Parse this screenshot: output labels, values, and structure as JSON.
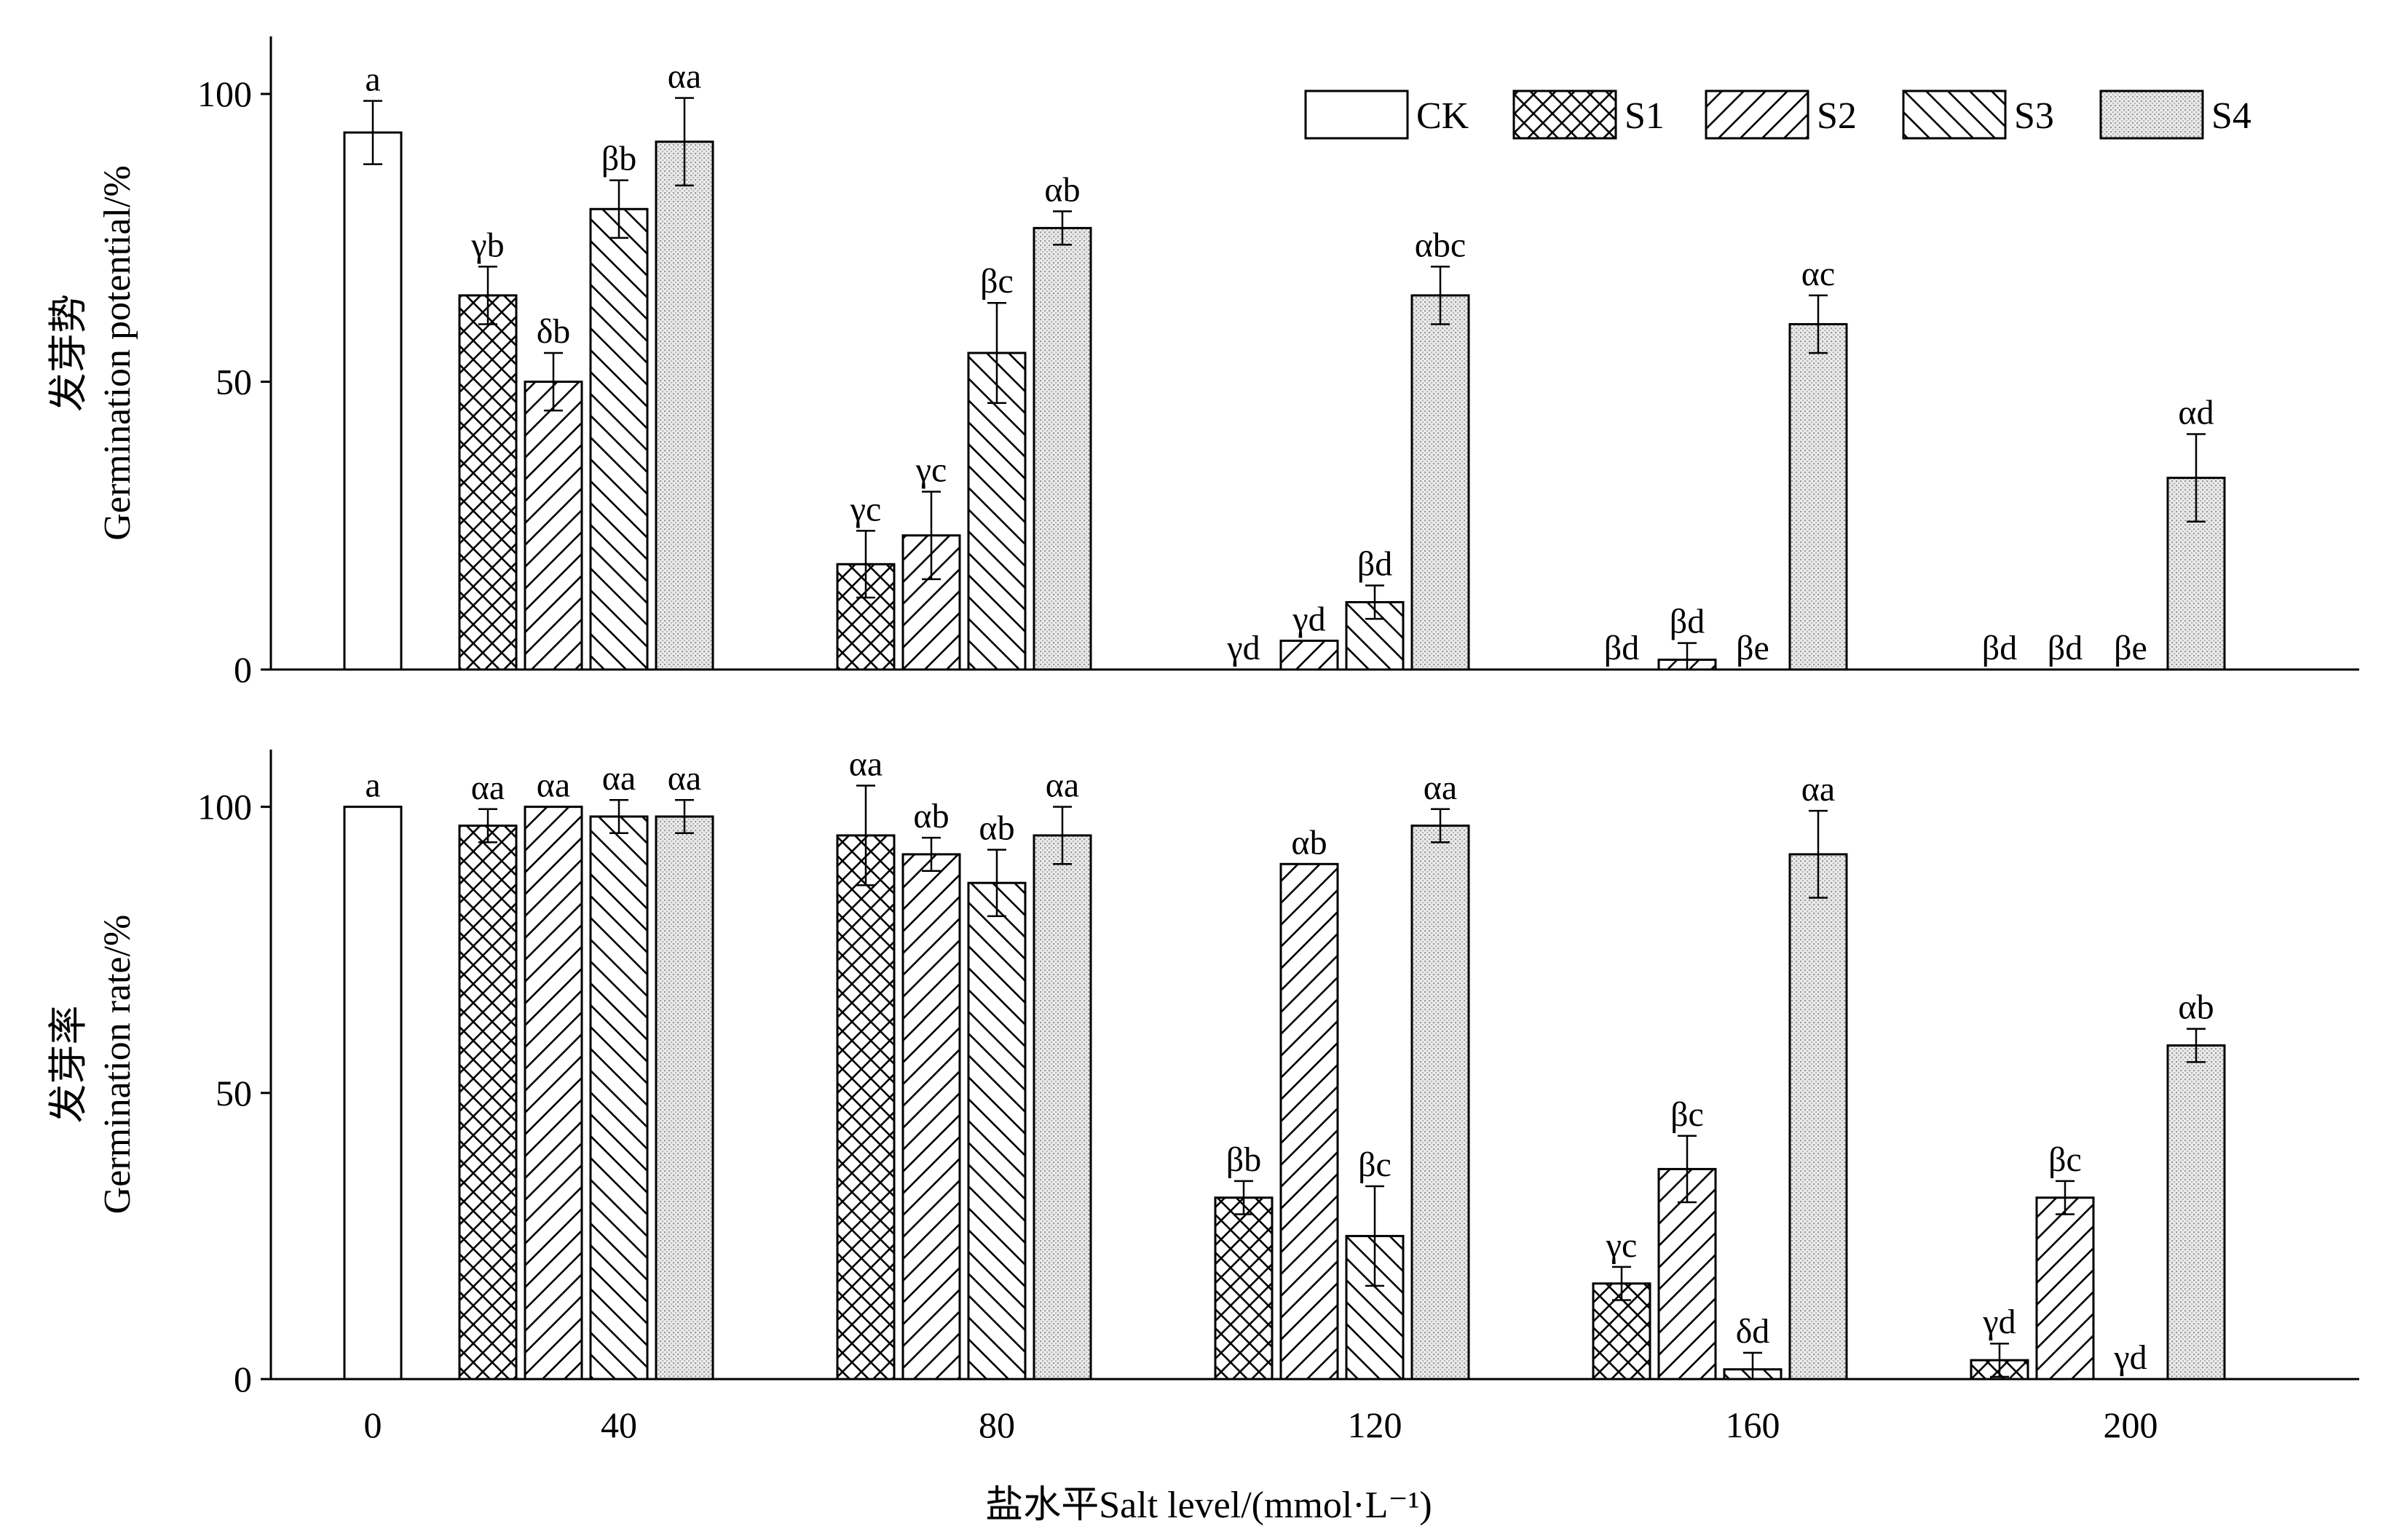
{
  "chart_data": {
    "type": "bar",
    "x_axis": {
      "label": "盐水平Salt level/(mmol·L⁻¹)",
      "categories": [
        "0",
        "40",
        "80",
        "120",
        "160",
        "200"
      ]
    },
    "legend": [
      {
        "name": "CK",
        "pattern": "none"
      },
      {
        "name": "S1",
        "pattern": "crosshatch"
      },
      {
        "name": "S2",
        "pattern": "forward-diagonal"
      },
      {
        "name": "S3",
        "pattern": "backward-diagonal"
      },
      {
        "name": "S4",
        "pattern": "dotted"
      }
    ],
    "legend_position": "top-right",
    "panels": [
      {
        "id": "potential",
        "ylabel_cn": "发芽势",
        "ylabel": "Germination potential/%",
        "ylim": [
          0,
          110
        ],
        "yticks": [
          "0",
          "50",
          "100"
        ],
        "series": [
          {
            "name": "CK",
            "values": [
              93.3,
              null,
              null,
              null,
              null,
              null
            ],
            "errors": [
              5.5,
              null,
              null,
              null,
              null,
              null
            ],
            "letters": [
              "a",
              "",
              "",
              "",
              "",
              ""
            ]
          },
          {
            "name": "S1",
            "values": [
              null,
              65,
              18.3,
              0,
              0,
              0
            ],
            "errors": [
              null,
              5,
              5.8,
              0,
              0,
              0
            ],
            "letters": [
              "",
              "γb",
              "γc",
              "γd",
              "βd",
              "βd"
            ]
          },
          {
            "name": "S2",
            "values": [
              null,
              50,
              23.3,
              5,
              1.7,
              0
            ],
            "errors": [
              null,
              5,
              7.6,
              0,
              2.9,
              0
            ],
            "letters": [
              "",
              "δb",
              "γc",
              "γd",
              "βd",
              "βd"
            ]
          },
          {
            "name": "S3",
            "values": [
              null,
              80,
              55,
              11.7,
              0,
              0
            ],
            "errors": [
              null,
              5,
              8.7,
              2.9,
              0,
              0
            ],
            "letters": [
              "",
              "βb",
              "βc",
              "βd",
              "βe",
              "βe"
            ]
          },
          {
            "name": "S4",
            "values": [
              null,
              91.7,
              76.7,
              65,
              60,
              33.3
            ],
            "errors": [
              null,
              7.6,
              2.9,
              5,
              5,
              7.6
            ],
            "letters": [
              "",
              "αa",
              "αb",
              "αbc",
              "αc",
              "αd"
            ]
          }
        ]
      },
      {
        "id": "rate",
        "ylabel_cn": "发芽率",
        "ylabel": "Germination rate/%",
        "ylim": [
          0,
          110
        ],
        "yticks": [
          "0",
          "50",
          "100"
        ],
        "series": [
          {
            "name": "CK",
            "values": [
              100,
              null,
              null,
              null,
              null,
              null
            ],
            "errors": [
              0,
              null,
              null,
              null,
              null,
              null
            ],
            "letters": [
              "a",
              "",
              "",
              "",
              "",
              ""
            ]
          },
          {
            "name": "S1",
            "values": [
              null,
              96.7,
              95,
              31.7,
              16.7,
              3.3
            ],
            "errors": [
              null,
              2.9,
              8.7,
              2.9,
              2.9,
              2.9
            ],
            "letters": [
              "",
              "αa",
              "αa",
              "βb",
              "γc",
              "γd"
            ]
          },
          {
            "name": "S2",
            "values": [
              null,
              100,
              91.7,
              90,
              36.7,
              31.7
            ],
            "errors": [
              null,
              0,
              2.9,
              0,
              5.8,
              2.9
            ],
            "letters": [
              "",
              "αa",
              "αb",
              "αb",
              "βc",
              "βc"
            ]
          },
          {
            "name": "S3",
            "values": [
              null,
              98.3,
              86.7,
              25,
              1.7,
              0
            ],
            "errors": [
              null,
              2.9,
              5.8,
              8.7,
              2.9,
              0
            ],
            "letters": [
              "",
              "αa",
              "αb",
              "βc",
              "δd",
              "γd"
            ]
          },
          {
            "name": "S4",
            "values": [
              null,
              98.3,
              95,
              96.7,
              91.7,
              58.3
            ],
            "errors": [
              null,
              2.9,
              5,
              2.9,
              7.6,
              2.9
            ],
            "letters": [
              "",
              "αa",
              "αa",
              "αa",
              "αa",
              "αb"
            ]
          }
        ]
      }
    ]
  }
}
